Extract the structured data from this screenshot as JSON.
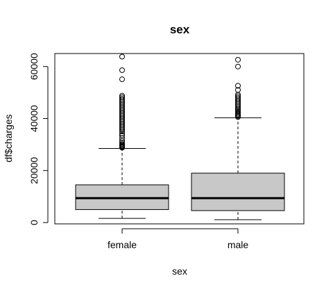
{
  "chart_data": {
    "type": "boxplot",
    "title": "sex",
    "xlabel": "sex",
    "ylabel": "df$charges",
    "ylim": [
      -500,
      65000
    ],
    "yticks": [
      0,
      20000,
      40000,
      60000
    ],
    "grid": false,
    "legend": "none",
    "box_fill": "#c8c8c8",
    "categories": [
      "female",
      "male"
    ],
    "boxes": [
      {
        "category": "female",
        "whisker_low": 1600,
        "q1": 5000,
        "median": 9400,
        "q3": 14500,
        "whisker_high": 28500,
        "outliers": [
          28800,
          29000,
          29200,
          29500,
          29800,
          30200,
          30800,
          31500,
          32500,
          33500,
          34200,
          35000,
          35600,
          36200,
          36800,
          37400,
          38000,
          38600,
          39200,
          39800,
          40400,
          41000,
          41600,
          42200,
          42800,
          43400,
          44000,
          44600,
          45200,
          45800,
          46400,
          47000,
          47600,
          48200,
          48800,
          55100,
          58600,
          63800
        ]
      },
      {
        "category": "male",
        "whisker_low": 1100,
        "q1": 4600,
        "median": 9400,
        "q3": 19000,
        "whisker_high": 40300,
        "outliers": [
          40600,
          41000,
          41400,
          41800,
          42300,
          42800,
          43300,
          43800,
          44400,
          45000,
          45600,
          46200,
          46800,
          47400,
          48000,
          48600,
          49200,
          51000,
          52600,
          60000,
          62600
        ]
      }
    ]
  }
}
